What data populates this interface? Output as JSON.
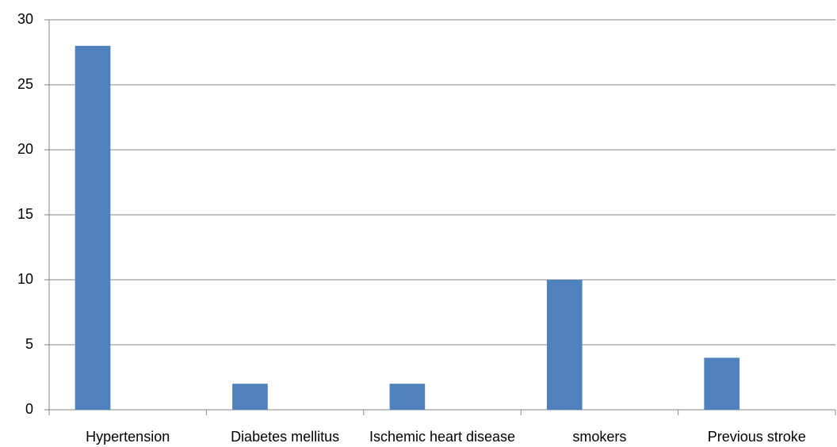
{
  "chart_data": {
    "type": "bar",
    "categories": [
      "Hypertension",
      "Diabetes mellitus",
      "Ischemic heart disease",
      "smokers",
      "Previous stroke"
    ],
    "values": [
      28,
      2,
      2,
      10,
      4
    ],
    "color": "#4f81bd",
    "ylim": [
      0,
      30
    ],
    "yticks": [
      0,
      5,
      10,
      15,
      20,
      25,
      30
    ],
    "grid": true
  }
}
